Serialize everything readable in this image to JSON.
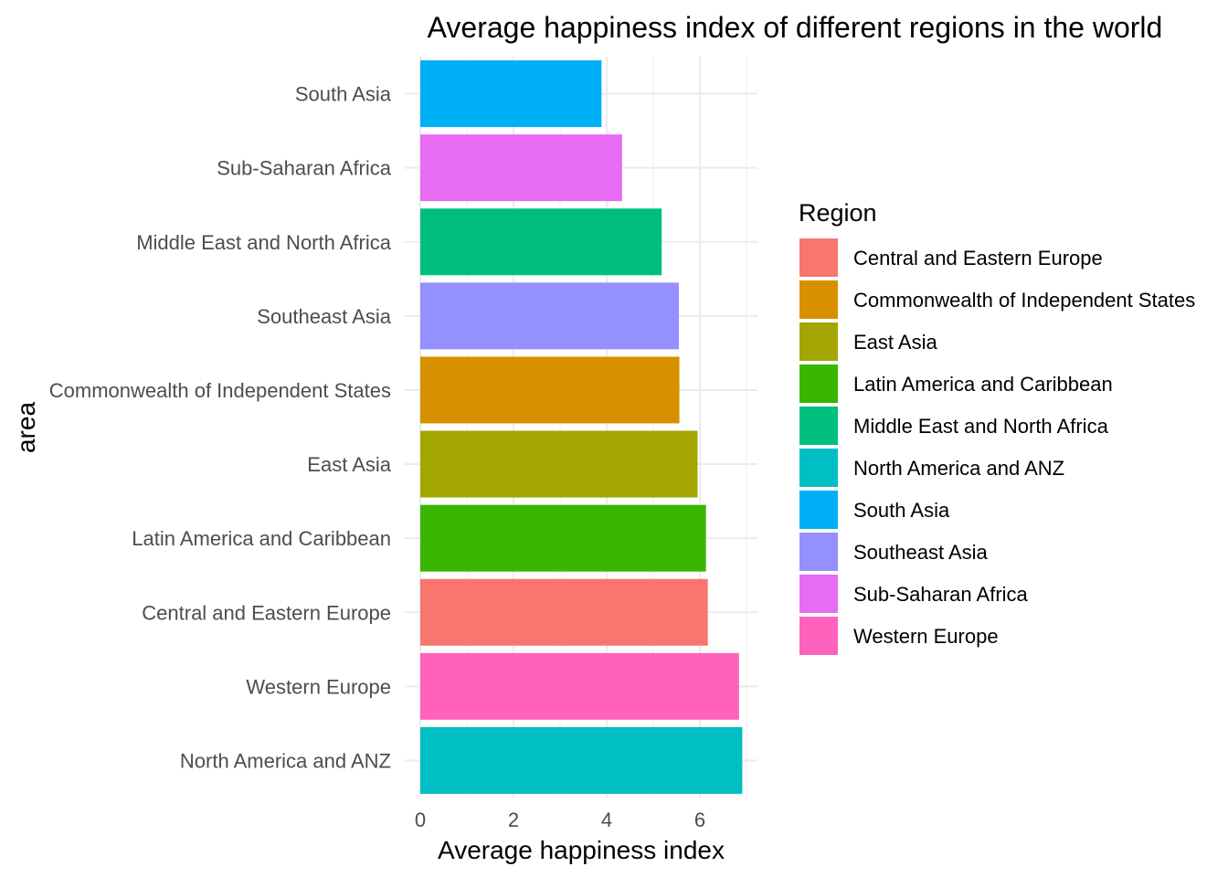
{
  "chart_data": {
    "type": "bar",
    "orientation": "horizontal",
    "title": "Average happiness index of different regions in the world",
    "xlabel": "Average happiness index",
    "ylabel": "area",
    "xlim": [
      0,
      7.2
    ],
    "x_ticks": [
      0,
      2,
      4,
      6
    ],
    "grid": true,
    "categories": [
      "North America and ANZ",
      "Western Europe",
      "Central and Eastern Europe",
      "Latin America and Caribbean",
      "East Asia",
      "Commonwealth of Independent States",
      "Southeast Asia",
      "Middle East and North Africa",
      "Sub-Saharan Africa",
      "South Asia"
    ],
    "values": [
      6.91,
      6.84,
      6.17,
      6.13,
      5.95,
      5.56,
      5.55,
      5.18,
      4.33,
      3.89
    ],
    "legend": {
      "title": "Region",
      "placement": "right",
      "entries": [
        {
          "label": "Central and Eastern Europe",
          "color": "#F8766D"
        },
        {
          "label": "Commonwealth of Independent States",
          "color": "#D89000"
        },
        {
          "label": "East Asia",
          "color": "#A3A500"
        },
        {
          "label": "Latin America and Caribbean",
          "color": "#39B600"
        },
        {
          "label": "Middle East and North Africa",
          "color": "#00BF7D"
        },
        {
          "label": "North America and ANZ",
          "color": "#00BFC4"
        },
        {
          "label": "South Asia",
          "color": "#00B0F6"
        },
        {
          "label": "Southeast Asia",
          "color": "#9590FF"
        },
        {
          "label": "Sub-Saharan Africa",
          "color": "#E76BF3"
        },
        {
          "label": "Western Europe",
          "color": "#FF62BC"
        }
      ]
    }
  }
}
